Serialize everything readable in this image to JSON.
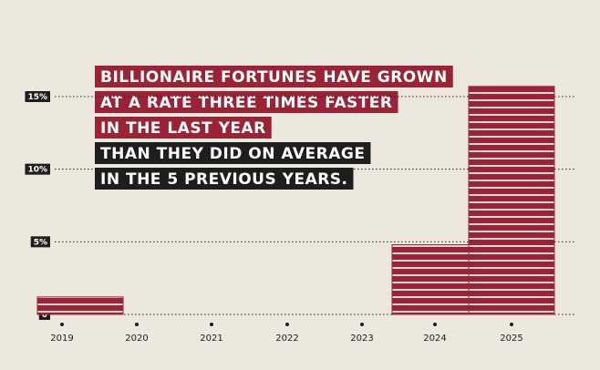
{
  "chart_data": {
    "type": "bar",
    "title_lines": [
      {
        "text": "BILLIONAIRE FORTUNES HAVE GROWN",
        "color": "#9b2335"
      },
      {
        "text": "AT A RATE THREE TIMES FASTER",
        "color": "#9b2335"
      },
      {
        "text": "IN THE LAST YEAR",
        "color": "#9b2335"
      },
      {
        "text": "THAN THEY DID ON AVERAGE",
        "color": "#1e1e1e"
      },
      {
        "text": "IN THE 5 PREVIOUS YEARS.",
        "color": "#1e1e1e"
      }
    ],
    "categories": [
      "2019",
      "2020",
      "2021",
      "2022",
      "2023",
      "2024",
      "2025"
    ],
    "values": [
      1.2,
      null,
      null,
      null,
      null,
      4.8,
      15.7
    ],
    "color": "#9b2335",
    "ylim": [
      0,
      15
    ],
    "yticks": [
      0,
      {
        "value": 5,
        "label": "5%"
      },
      {
        "value": 10,
        "label": "10%"
      },
      {
        "value": 15,
        "label": "15%"
      }
    ],
    "grid": true
  }
}
